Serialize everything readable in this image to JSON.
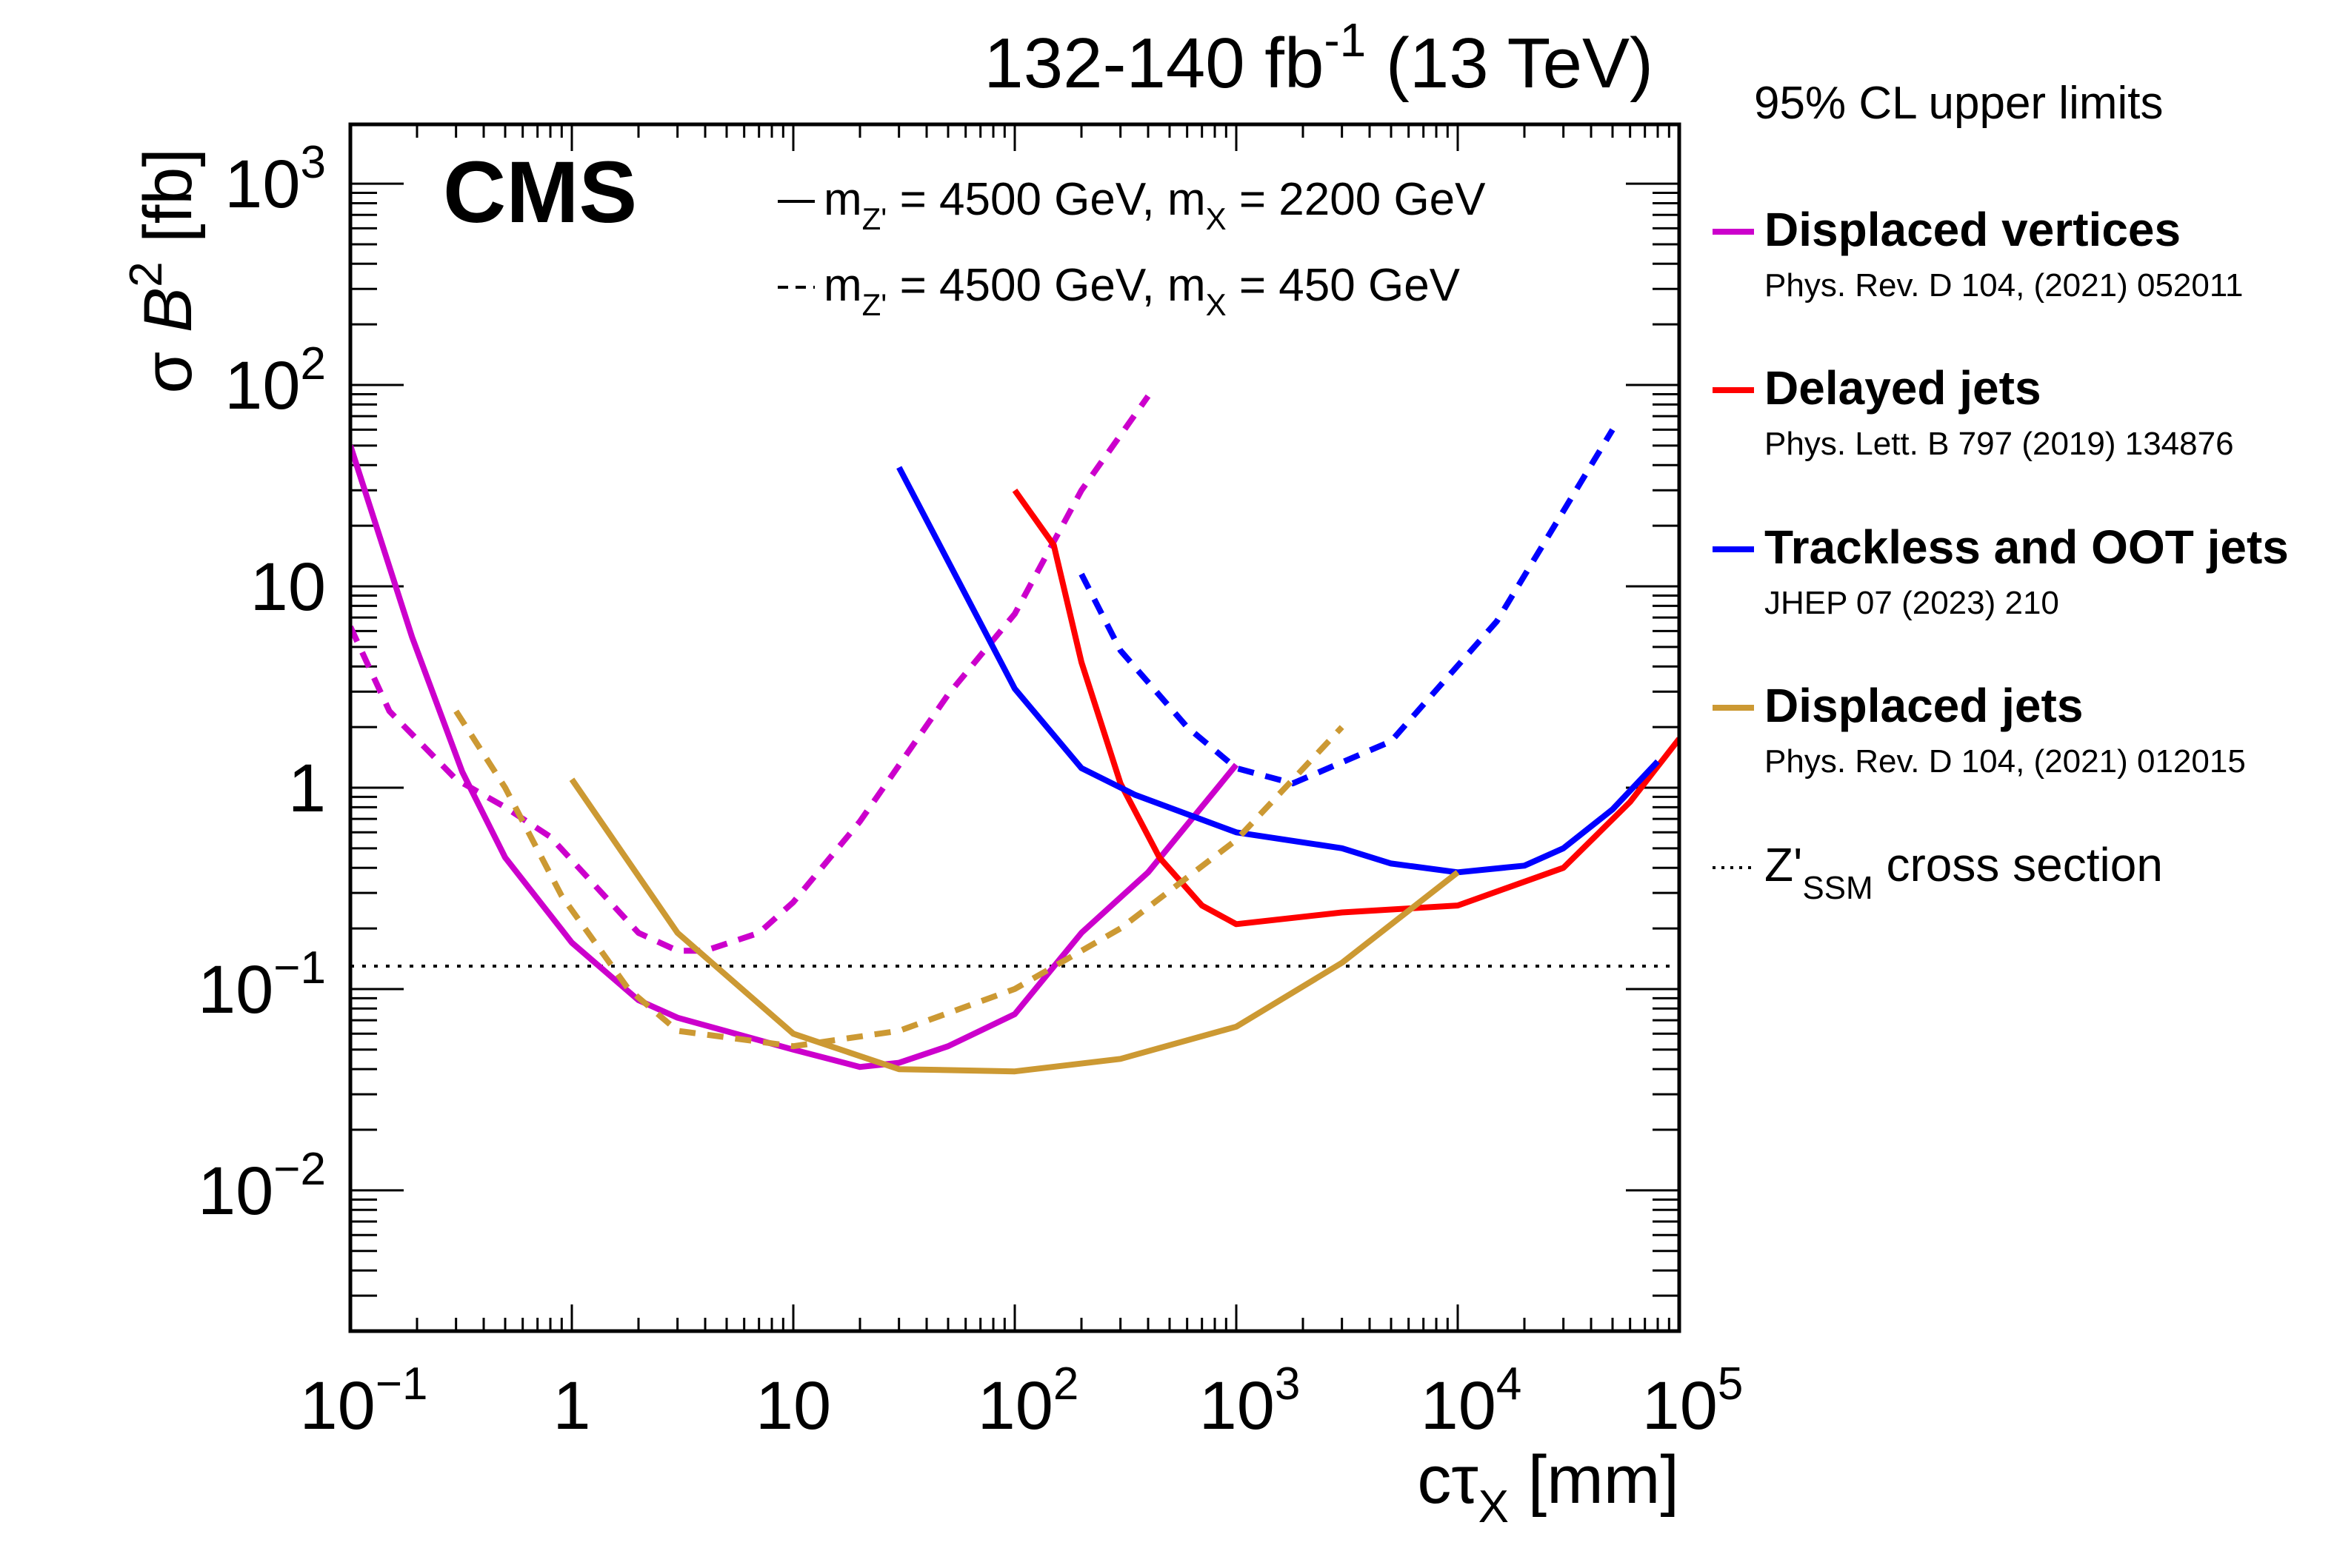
{
  "chart_data": {
    "type": "line",
    "title": "132-140 fb⁻¹ (13 TeV)",
    "title_parts": {
      "main": "132-140 fb",
      "sup": "-1",
      "tail": " (13 TeV)"
    },
    "experiment_label": "CMS",
    "xlabel": "cτ_X [mm]",
    "xlabel_parts": {
      "main": "cτ",
      "sub": "X",
      "tail": " [mm]"
    },
    "ylabel": "σ B² [fb]",
    "ylabel_parts": {
      "sigma": "σ ",
      "b": "B",
      "sup": "2",
      "tail": " [fb]"
    },
    "xscale": "log",
    "yscale": "log",
    "xlim": [
      0.1,
      100000
    ],
    "ylim": [
      0.002,
      1970
    ],
    "x_ticks": [
      {
        "value": 0.1,
        "base": "10",
        "exp": "−1"
      },
      {
        "value": 1,
        "base": "1",
        "exp": ""
      },
      {
        "value": 10,
        "base": "10",
        "exp": ""
      },
      {
        "value": 100,
        "base": "10",
        "exp": "2"
      },
      {
        "value": 1000,
        "base": "10",
        "exp": "3"
      },
      {
        "value": 10000,
        "base": "10",
        "exp": "4"
      },
      {
        "value": 100000,
        "base": "10",
        "exp": "5"
      }
    ],
    "y_ticks": [
      {
        "value": 0.01,
        "base": "10",
        "exp": "−2"
      },
      {
        "value": 0.1,
        "base": "10",
        "exp": "−1"
      },
      {
        "value": 1,
        "base": "1",
        "exp": ""
      },
      {
        "value": 10,
        "base": "10",
        "exp": ""
      },
      {
        "value": 100,
        "base": "10",
        "exp": "2"
      },
      {
        "value": 1000,
        "base": "10",
        "exp": "3"
      }
    ],
    "mass_legend": [
      {
        "style": "solid",
        "symbol": "—",
        "text": "m_Z' = 4500 GeV, m_X = 2200 GeV",
        "parts": [
          "m",
          "Z'",
          " = 4500 GeV, m",
          "X",
          " = 2200 GeV"
        ]
      },
      {
        "style": "dashed",
        "symbol": "- -",
        "text": "m_Z' = 4500 GeV, m_X = 450 GeV",
        "parts": [
          "m",
          "Z'",
          " = 4500 GeV, m",
          "X",
          " = 450 GeV"
        ]
      }
    ],
    "legend": {
      "title": "95% CL upper limits",
      "placement": "right-outside",
      "entries": [
        {
          "name": "Displaced vertices",
          "reference": "Phys. Rev. D 104, (2021) 052011",
          "color": "#cc00cc"
        },
        {
          "name": "Delayed jets",
          "reference": "Phys. Lett. B 797 (2019) 134876",
          "color": "#ff0000"
        },
        {
          "name": "Trackless and OOT jets",
          "reference": "JHEP 07 (2023) 210",
          "color": "#0000ff"
        },
        {
          "name": "Displaced jets",
          "reference": "Phys. Rev. D 104, (2021) 012015",
          "color": "#cc9933"
        }
      ],
      "reference_line": {
        "name": "Z'_SSM cross section",
        "parts": [
          "Z'",
          "SSM",
          " cross section"
        ],
        "style": "dotted"
      }
    },
    "reference_line_value": 0.13,
    "series": [
      {
        "name": "Displaced vertices",
        "mass_point": "m_X = 2200 GeV",
        "style": "solid",
        "color": "#cc00cc",
        "x": [
          0.1,
          0.19,
          0.32,
          0.5,
          1,
          2,
          3,
          10,
          20,
          30,
          50,
          100,
          200,
          400,
          1000
        ],
        "y": [
          50,
          5.6,
          1.2,
          0.45,
          0.17,
          0.088,
          0.072,
          0.05,
          0.041,
          0.043,
          0.052,
          0.075,
          0.19,
          0.38,
          1.3
        ]
      },
      {
        "name": "Displaced vertices",
        "mass_point": "m_X = 450 GeV",
        "style": "dashed",
        "color": "#cc00cc",
        "x": [
          0.1,
          0.15,
          0.3,
          0.5,
          0.8,
          2,
          3,
          4,
          7,
          10,
          20,
          50,
          100,
          200,
          400
        ],
        "y": [
          6.3,
          2.4,
          1.1,
          0.8,
          0.57,
          0.19,
          0.155,
          0.155,
          0.19,
          0.27,
          0.68,
          2.9,
          7.3,
          30,
          88
        ]
      },
      {
        "name": "Delayed jets",
        "mass_point": "m_X = 2200 GeV",
        "style": "solid",
        "color": "#ff0000",
        "x": [
          100,
          150,
          200,
          300,
          450,
          700,
          1000,
          3000,
          10000,
          30000,
          60000,
          100000
        ],
        "y": [
          30,
          16,
          4.2,
          1.05,
          0.45,
          0.26,
          0.21,
          0.24,
          0.26,
          0.4,
          0.85,
          1.75
        ]
      },
      {
        "name": "Trackless and OOT jets",
        "mass_point": "m_X = 2200 GeV",
        "style": "solid",
        "color": "#0000ff",
        "x": [
          30,
          100,
          200,
          350,
          1000,
          3000,
          5000,
          10000,
          20000,
          30000,
          50000,
          80000
        ],
        "y": [
          39,
          3.1,
          1.25,
          0.92,
          0.6,
          0.5,
          0.42,
          0.38,
          0.41,
          0.5,
          0.78,
          1.35
        ]
      },
      {
        "name": "Trackless and OOT jets",
        "mass_point": "m_X = 450 GeV",
        "style": "dashed",
        "color": "#0000ff",
        "x": [
          200,
          300,
          600,
          1000,
          1800,
          5000,
          15000,
          50000
        ],
        "y": [
          11.5,
          4.8,
          2.0,
          1.25,
          1.05,
          1.7,
          6.7,
          60
        ]
      },
      {
        "name": "Displaced jets",
        "mass_point": "m_X = 2200 GeV",
        "style": "solid",
        "color": "#cc9933",
        "x": [
          1,
          3,
          10,
          30,
          100,
          300,
          1000,
          3000,
          10000
        ],
        "y": [
          1.1,
          0.19,
          0.06,
          0.04,
          0.039,
          0.045,
          0.065,
          0.135,
          0.38
        ]
      },
      {
        "name": "Displaced jets",
        "mass_point": "m_X = 450 GeV",
        "style": "dashed",
        "color": "#cc9933",
        "x": [
          0.3,
          0.5,
          0.9,
          1.8,
          3,
          10,
          30,
          100,
          300,
          1000,
          3000
        ],
        "y": [
          2.4,
          1.0,
          0.29,
          0.1,
          0.062,
          0.052,
          0.062,
          0.1,
          0.2,
          0.55,
          2.0
        ]
      }
    ]
  }
}
